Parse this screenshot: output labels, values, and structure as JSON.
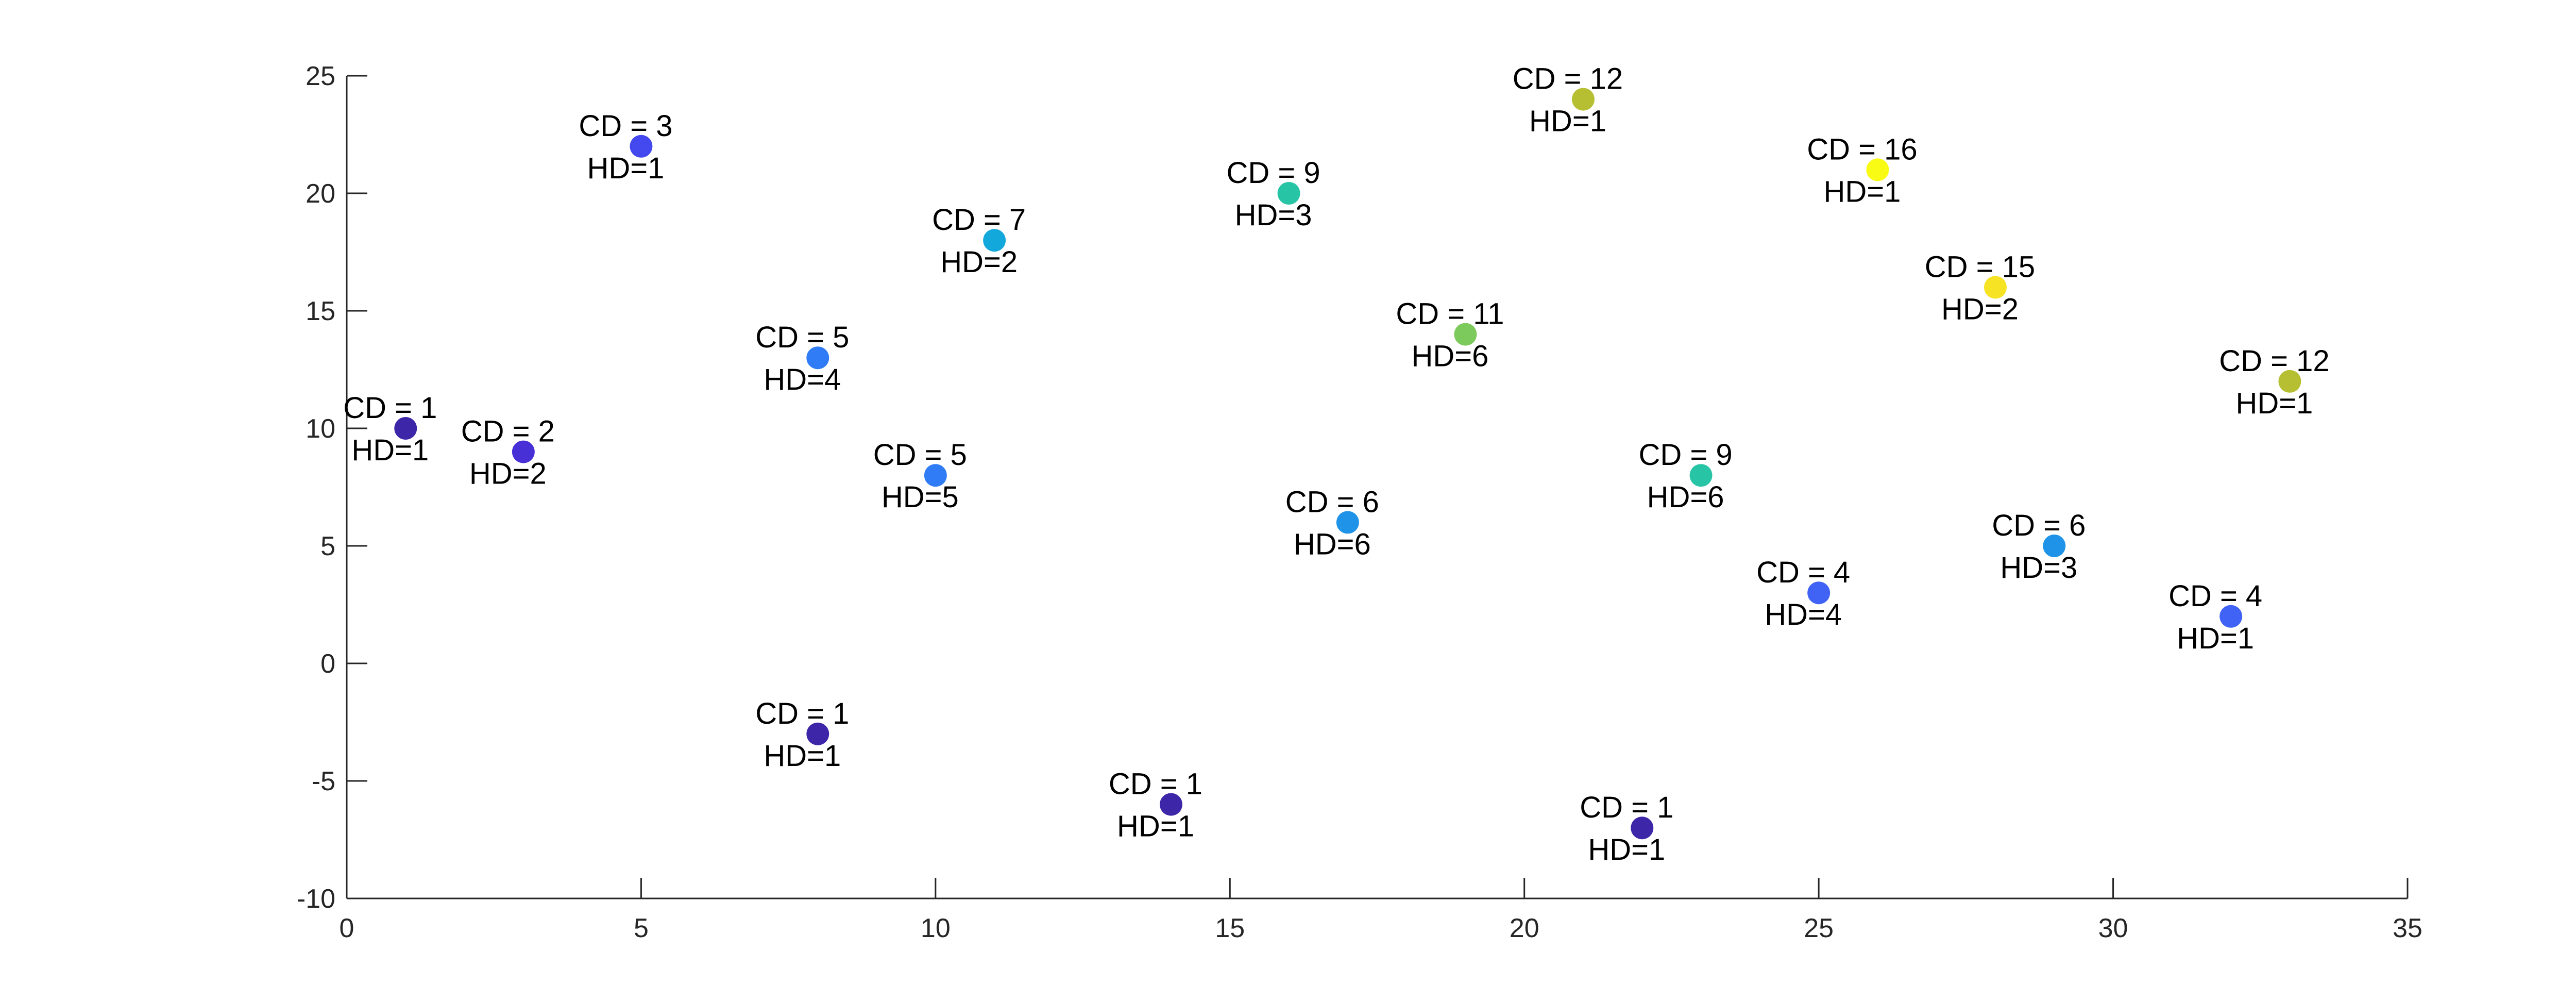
{
  "chart_data": {
    "type": "scatter",
    "title": "",
    "xlabel": "",
    "ylabel": "",
    "xlim": [
      0,
      35
    ],
    "ylim": [
      -10,
      25
    ],
    "xticks": [
      "0",
      "5",
      "10",
      "15",
      "20",
      "25",
      "30",
      "35"
    ],
    "yticks": [
      "25",
      "20",
      "15",
      "10",
      "5",
      "0",
      "-5",
      "-10"
    ],
    "grid": false,
    "legend": "none",
    "colormap": [
      "#3e26a8",
      "#4352f5",
      "#2e87f7",
      "#17b2d6",
      "#29c99c",
      "#86c955",
      "#c5c02e",
      "#f9fb14"
    ],
    "points": [
      {
        "x": 1,
        "y": 10,
        "cd_label": "CD = 1",
        "hd_label": "HD=1",
        "cd": 1,
        "color": "#3e26a8"
      },
      {
        "x": 3,
        "y": 9,
        "cd_label": "CD = 2",
        "hd_label": "HD=2",
        "cd": 2,
        "color": "#4630d6"
      },
      {
        "x": 5,
        "y": 22,
        "cd_label": "CD = 3",
        "hd_label": "HD=1",
        "cd": 3,
        "color": "#4348ef"
      },
      {
        "x": 8,
        "y": 13,
        "cd_label": "CD = 5",
        "hd_label": "HD=4",
        "cd": 5,
        "color": "#2f7cf6"
      },
      {
        "x": 8,
        "y": -3,
        "cd_label": "CD = 1",
        "hd_label": "HD=1",
        "cd": 1,
        "color": "#3e26a8"
      },
      {
        "x": 10,
        "y": 8,
        "cd_label": "CD = 5",
        "hd_label": "HD=5",
        "cd": 5,
        "color": "#2f7cf6"
      },
      {
        "x": 11,
        "y": 18,
        "cd_label": "CD = 7",
        "hd_label": "HD=2",
        "cd": 7,
        "color": "#13a8dc"
      },
      {
        "x": 14,
        "y": -6,
        "cd_label": "CD = 1",
        "hd_label": "HD=1",
        "cd": 1,
        "color": "#3e26a8"
      },
      {
        "x": 16,
        "y": 20,
        "cd_label": "CD = 9",
        "hd_label": "HD=3",
        "cd": 9,
        "color": "#27c5a5"
      },
      {
        "x": 17,
        "y": 6,
        "cd_label": "CD = 6",
        "hd_label": "HD=6",
        "cd": 6,
        "color": "#1e93e8"
      },
      {
        "x": 19,
        "y": 14,
        "cd_label": "CD = 11",
        "hd_label": "HD=6",
        "cd": 11,
        "color": "#7dca5c"
      },
      {
        "x": 21,
        "y": 24,
        "cd_label": "CD = 12",
        "hd_label": "HD=1",
        "cd": 12,
        "color": "#b6bf32"
      },
      {
        "x": 22,
        "y": -7,
        "cd_label": "CD = 1",
        "hd_label": "HD=1",
        "cd": 1,
        "color": "#3e26a8"
      },
      {
        "x": 23,
        "y": 8,
        "cd_label": "CD = 9",
        "hd_label": "HD=6",
        "cd": 9,
        "color": "#27c5a5"
      },
      {
        "x": 25,
        "y": 3,
        "cd_label": "CD = 4",
        "hd_label": "HD=4",
        "cd": 4,
        "color": "#4063f6"
      },
      {
        "x": 26,
        "y": 21,
        "cd_label": "CD = 16",
        "hd_label": "HD=1",
        "cd": 16,
        "color": "#f9fb14"
      },
      {
        "x": 28,
        "y": 16,
        "cd_label": "CD = 15",
        "hd_label": "HD=2",
        "cd": 15,
        "color": "#f6e324"
      },
      {
        "x": 29,
        "y": 5,
        "cd_label": "CD = 6",
        "hd_label": "HD=3",
        "cd": 6,
        "color": "#1e93e8"
      },
      {
        "x": 32,
        "y": 2,
        "cd_label": "CD = 4",
        "hd_label": "HD=1",
        "cd": 4,
        "color": "#4063f6"
      },
      {
        "x": 33,
        "y": 12,
        "cd_label": "CD = 12",
        "hd_label": "HD=1",
        "cd": 12,
        "color": "#b6bf32"
      }
    ]
  }
}
